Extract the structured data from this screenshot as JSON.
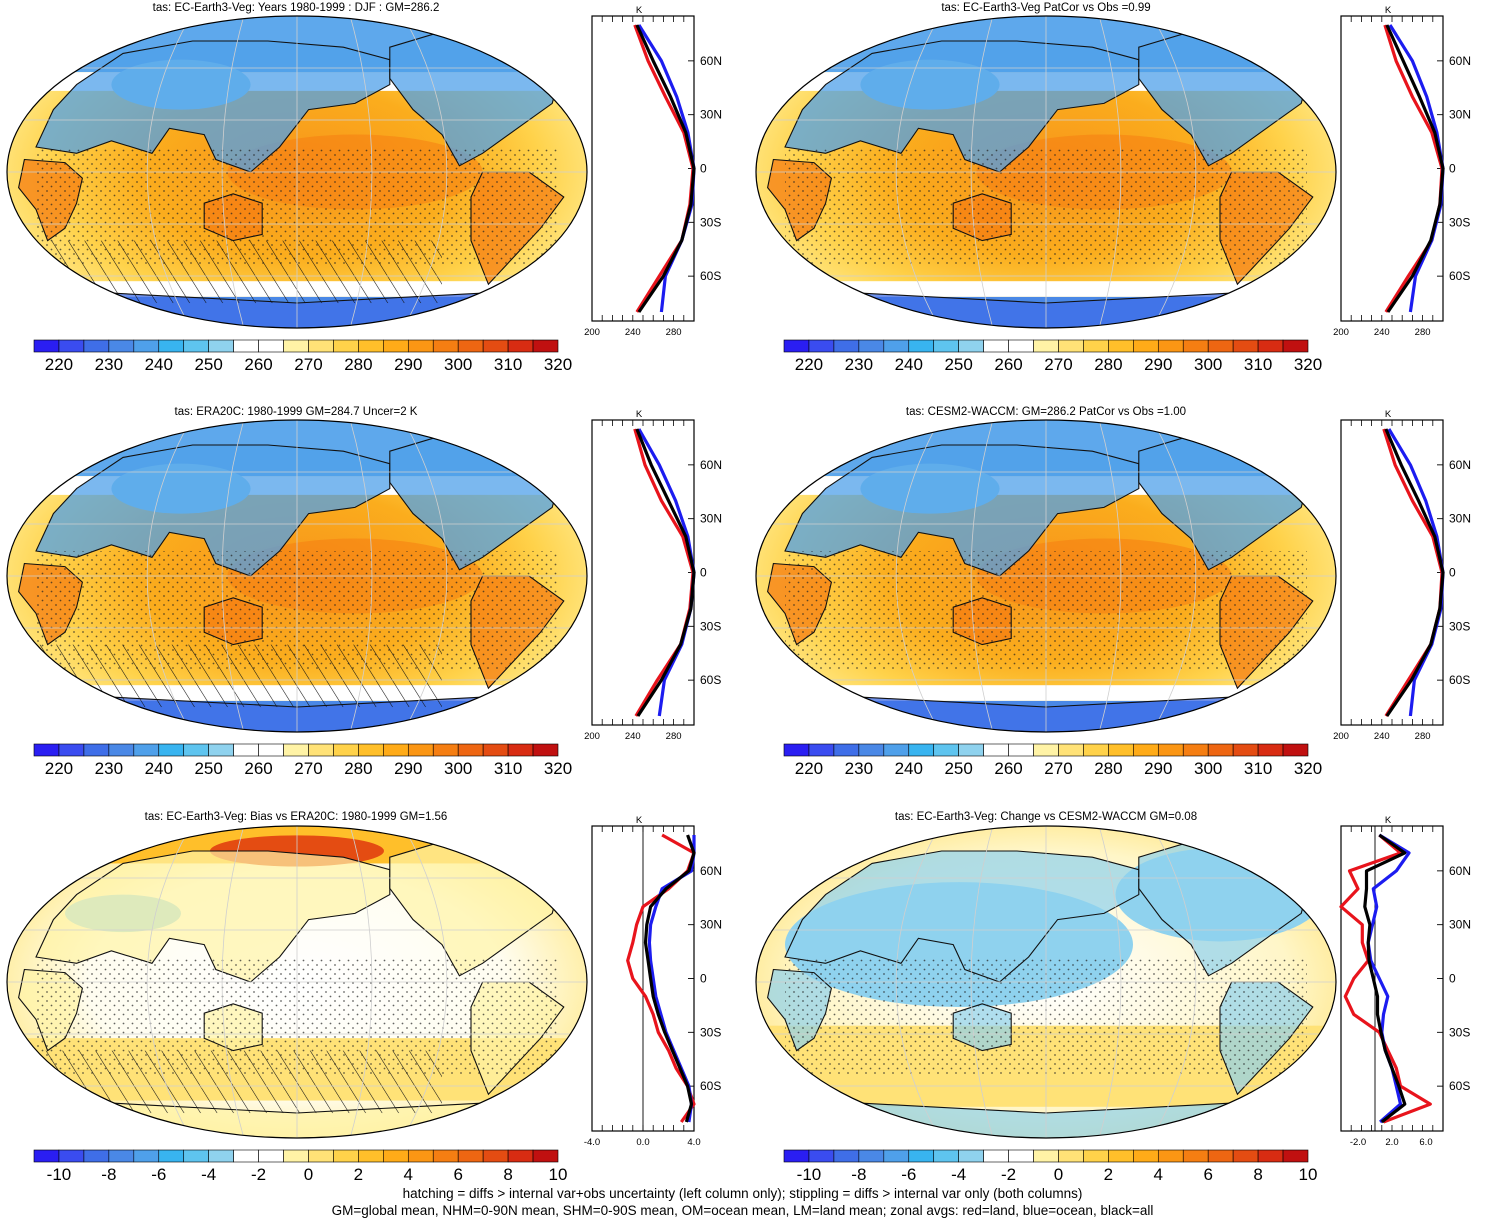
{
  "figure": {
    "footnotes": [
      "hatching = diffs > internal var+obs uncertainty (left column only); stippling = diffs > internal var only (both columns)",
      "GM=global mean, NHM=0-90N mean, SHM=0-90S mean, OM=ocean mean, LM=land mean; zonal avgs: red=land, blue=ocean, black=all"
    ],
    "colors": {
      "zonal_land": "#e8141c",
      "zonal_ocean": "#1c1cf0",
      "zonal_all": "#000000",
      "temp_scale": [
        "#2a1ef2",
        "#3a4cf0",
        "#3f6ee8",
        "#4a88e6",
        "#4fa0ea",
        "#38b4f0",
        "#5ec4ef",
        "#8fd2ee",
        "#ffffff",
        "#ffffff",
        "#fff3a6",
        "#ffe277",
        "#ffd24a",
        "#ffbf2a",
        "#ffab18",
        "#fb9614",
        "#f57e12",
        "#ee6612",
        "#e44c12",
        "#d82c12",
        "#c01010"
      ],
      "diff_scale": [
        "#2a1ef2",
        "#3a4cf0",
        "#3f6ee8",
        "#4a88e6",
        "#4fa0ea",
        "#38b4f0",
        "#5ec4ef",
        "#8fd2ee",
        "#ffffff",
        "#ffffff",
        "#fff3a6",
        "#ffe277",
        "#ffd24a",
        "#ffbf2a",
        "#ffab18",
        "#fb9614",
        "#f57e12",
        "#ee6612",
        "#e44c12",
        "#d82c12",
        "#c01010"
      ]
    }
  },
  "chart_data": [
    {
      "type": "heatmap",
      "title": "tas: EC-Earth3-Veg: Years 1980-1999 : DJF : GM=286.2",
      "colorbar_labels": [
        "220",
        "230",
        "240",
        "250",
        "260",
        "270",
        "280",
        "290",
        "300",
        "310",
        "320"
      ],
      "zonal_profile": {
        "unit": "K",
        "xlim": [
          200,
          300
        ],
        "xticks": [
          "200",
          "240",
          "280"
        ],
        "ylabels": [
          "60N",
          "30N",
          "0",
          "30S",
          "60S"
        ],
        "lat": [
          80,
          60,
          40,
          20,
          0,
          -20,
          -40,
          -60,
          -80
        ],
        "series": [
          {
            "name": "land",
            "values": [
              242,
              255,
              272,
              290,
              299,
              296,
              288,
              266,
              244
            ]
          },
          {
            "name": "ocean",
            "values": [
              246,
              268,
              283,
              294,
              300,
              298,
              288,
              272,
              268
            ]
          },
          {
            "name": "all",
            "values": [
              244,
              260,
              277,
              292,
              300,
              297,
              288,
              270,
              246
            ]
          }
        ]
      },
      "map_style": "abs_ec"
    },
    {
      "type": "heatmap",
      "title": "tas: EC-Earth3-Veg PatCor vs Obs =0.99",
      "colorbar_labels": [
        "220",
        "230",
        "240",
        "250",
        "260",
        "270",
        "280",
        "290",
        "300",
        "310",
        "320"
      ],
      "zonal_profile": {
        "unit": "K",
        "xlim": [
          200,
          300
        ],
        "xticks": [
          "200",
          "240",
          "280"
        ],
        "ylabels": [
          "60N",
          "30N",
          "0",
          "30S",
          "60S"
        ],
        "lat": [
          80,
          60,
          40,
          20,
          0,
          -20,
          -40,
          -60,
          -80
        ],
        "series": [
          {
            "name": "land",
            "values": [
              243,
              254,
              270,
              289,
              299,
              297,
              289,
              266,
              244
            ]
          },
          {
            "name": "ocean",
            "values": [
              248,
              270,
              284,
              294,
              300,
              298,
              289,
              273,
              268
            ]
          },
          {
            "name": "all",
            "values": [
              245,
              261,
              277,
              292,
              300,
              297,
              288,
              270,
              246
            ]
          }
        ]
      },
      "map_style": "abs_cesm"
    },
    {
      "type": "heatmap",
      "title": "tas: ERA20C: 1980-1999 GM=284.7 Uncer=2 K",
      "colorbar_labels": [
        "220",
        "230",
        "240",
        "250",
        "260",
        "270",
        "280",
        "290",
        "300",
        "310",
        "320"
      ],
      "zonal_profile": {
        "unit": "K",
        "xlim": [
          200,
          300
        ],
        "xticks": [
          "200",
          "240",
          "280"
        ],
        "ylabels": [
          "60N",
          "30N",
          "0",
          "30S",
          "60S"
        ],
        "lat": [
          80,
          60,
          40,
          20,
          0,
          -20,
          -40,
          -60,
          -80
        ],
        "series": [
          {
            "name": "land",
            "values": [
              242,
              252,
              268,
              289,
              299,
              296,
              287,
              264,
              243
            ]
          },
          {
            "name": "ocean",
            "values": [
              246,
              266,
              282,
              294,
              300,
              297,
              288,
              271,
              266
            ]
          },
          {
            "name": "all",
            "values": [
              244,
              258,
              275,
              292,
              300,
              297,
              287,
              268,
              245
            ]
          }
        ]
      },
      "map_style": "abs_era"
    },
    {
      "type": "heatmap",
      "title": "tas: CESM2-WACCM: GM=286.2 PatCor vs Obs =1.00",
      "colorbar_labels": [
        "220",
        "230",
        "240",
        "250",
        "260",
        "270",
        "280",
        "290",
        "300",
        "310",
        "320"
      ],
      "zonal_profile": {
        "unit": "K",
        "xlim": [
          200,
          300
        ],
        "xticks": [
          "200",
          "240",
          "280"
        ],
        "ylabels": [
          "60N",
          "30N",
          "0",
          "30S",
          "60S"
        ],
        "lat": [
          80,
          60,
          40,
          20,
          0,
          -20,
          -40,
          -60,
          -80
        ],
        "series": [
          {
            "name": "land",
            "values": [
              242,
              253,
              270,
              290,
              299,
              297,
              288,
              266,
              244
            ]
          },
          {
            "name": "ocean",
            "values": [
              247,
              268,
              283,
              294,
              300,
              298,
              289,
              272,
              268
            ]
          },
          {
            "name": "all",
            "values": [
              244,
              259,
              276,
              292,
              300,
              297,
              288,
              269,
              245
            ]
          }
        ]
      },
      "map_style": "abs_cesm"
    },
    {
      "type": "heatmap",
      "title": "tas: EC-Earth3-Veg: Bias vs ERA20C: 1980-1999 GM=1.56",
      "colorbar_labels": [
        "-10",
        "-8",
        "-6",
        "-4",
        "-2",
        "0",
        "2",
        "4",
        "6",
        "8",
        "10"
      ],
      "zonal_profile": {
        "unit": "K",
        "xlim": [
          -4,
          4
        ],
        "xticks": [
          "-4.0",
          "0.0",
          "4.0"
        ],
        "ylabels": [
          "60N",
          "30N",
          "0",
          "30S",
          "60S"
        ],
        "lat": [
          80,
          70,
          60,
          50,
          40,
          30,
          20,
          10,
          0,
          -10,
          -20,
          -30,
          -40,
          -50,
          -60,
          -70,
          -80
        ],
        "series": [
          {
            "name": "land",
            "values": [
              1.5,
              4.0,
              3.5,
              2.0,
              0.0,
              -0.5,
              -0.8,
              -1.2,
              -0.8,
              0.2,
              0.8,
              1.2,
              2.0,
              2.6,
              3.5,
              4.0,
              3.0
            ]
          },
          {
            "name": "ocean",
            "values": [
              4.0,
              4.0,
              3.8,
              1.5,
              1.0,
              0.6,
              0.5,
              0.6,
              0.8,
              1.0,
              1.4,
              1.8,
              2.4,
              3.0,
              3.6,
              3.8,
              3.6
            ]
          },
          {
            "name": "all",
            "values": [
              3.5,
              4.0,
              3.6,
              1.8,
              0.6,
              0.3,
              0.2,
              0.4,
              0.6,
              0.8,
              1.2,
              1.7,
              2.3,
              2.9,
              3.5,
              3.8,
              3.4
            ]
          }
        ]
      },
      "map_style": "bias"
    },
    {
      "type": "heatmap",
      "title": "tas: EC-Earth3-Veg: Change vs CESM2-WACCM GM=0.08",
      "colorbar_labels": [
        "-10",
        "-8",
        "-6",
        "-4",
        "-2",
        "0",
        "2",
        "4",
        "6",
        "8",
        "10"
      ],
      "zonal_profile": {
        "unit": "K",
        "xlim": [
          -4,
          8
        ],
        "xticks": [
          "-2.0",
          "2.0",
          "6.0"
        ],
        "ylabels": [
          "60N",
          "30N",
          "0",
          "30S",
          "60S"
        ],
        "lat": [
          80,
          70,
          60,
          50,
          40,
          30,
          20,
          10,
          0,
          -10,
          -20,
          -30,
          -40,
          -50,
          -60,
          -70,
          -80
        ],
        "series": [
          {
            "name": "land",
            "values": [
              0.5,
              3.0,
              -3.0,
              -2.0,
              -4.0,
              -1.5,
              -1.5,
              -0.8,
              -2.5,
              -3.5,
              -2.5,
              0.5,
              1.5,
              2.5,
              3.0,
              6.5,
              1.0
            ]
          },
          {
            "name": "ocean",
            "values": [
              0.5,
              4.0,
              2.5,
              -0.2,
              0.2,
              -0.3,
              -0.8,
              -0.5,
              0.5,
              1.5,
              1.0,
              0.8,
              1.2,
              2.0,
              2.5,
              3.0,
              0.6
            ]
          },
          {
            "name": "all",
            "values": [
              0.5,
              3.5,
              -1.0,
              -1.0,
              -1.2,
              -0.6,
              -0.8,
              -0.7,
              -0.2,
              0.3,
              0.3,
              0.7,
              1.2,
              2.0,
              2.8,
              3.5,
              0.8
            ]
          }
        ]
      },
      "map_style": "change"
    }
  ]
}
